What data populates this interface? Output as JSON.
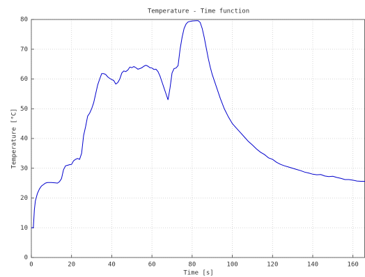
{
  "chart_data": {
    "type": "line",
    "title": "Temperature - Time function",
    "xlabel": "Time [s]",
    "ylabel": "Temperature [°C]",
    "x": [
      0,
      1,
      1.5,
      2,
      3,
      4,
      5,
      6,
      7,
      8,
      10,
      12,
      13,
      14,
      15,
      16,
      17,
      18,
      19,
      20,
      21,
      22,
      23,
      24,
      25,
      26,
      27,
      28,
      29,
      30,
      31,
      32,
      33,
      34,
      35,
      36,
      37,
      38,
      39,
      40,
      41,
      42,
      43,
      44,
      45,
      46,
      47,
      48,
      49,
      50,
      51,
      52,
      53,
      54,
      55,
      56,
      57,
      58,
      59,
      60,
      61,
      62,
      63,
      64,
      65,
      66,
      67,
      68,
      69,
      70,
      71,
      72,
      73,
      74,
      75,
      76,
      77,
      78,
      80,
      82,
      83,
      84,
      85,
      86,
      87,
      88,
      89,
      90,
      92,
      94,
      96,
      98,
      100,
      102,
      104,
      106,
      108,
      110,
      112,
      114,
      116,
      118,
      120,
      122,
      124,
      126,
      128,
      130,
      132,
      134,
      136,
      138,
      140,
      142,
      144,
      146,
      148,
      150,
      152,
      154,
      156,
      158,
      160,
      162,
      164,
      166
    ],
    "series": [
      {
        "name": "Temperature",
        "color": "#0000cc",
        "values": [
          10,
          10,
          16,
          19,
          21.5,
          23,
          24,
          24.5,
          25,
          25.2,
          25.2,
          25.1,
          25,
          25.5,
          26.5,
          29.5,
          30.8,
          31,
          31.2,
          31.3,
          32.5,
          33,
          33.3,
          33,
          35,
          41,
          44,
          47.5,
          48.5,
          50,
          52,
          55,
          58,
          60,
          61.8,
          61.8,
          61.5,
          60.7,
          60.2,
          59.8,
          59.5,
          58.3,
          58.8,
          60,
          62,
          62.7,
          62.5,
          63,
          64,
          63.8,
          64.2,
          63.8,
          63.3,
          63.5,
          63.8,
          64.3,
          64.6,
          64.3,
          63.8,
          63.7,
          63.2,
          63.3,
          62.5,
          61,
          59,
          57,
          55,
          53,
          57,
          62,
          63.5,
          63.7,
          64.5,
          70,
          74,
          77,
          78.5,
          79.2,
          79.5,
          79.6,
          79.6,
          79,
          77,
          74,
          70.5,
          67,
          64,
          61.5,
          57.5,
          53.5,
          50,
          47.3,
          45,
          43.5,
          42,
          40.5,
          39,
          37.8,
          36.5,
          35.4,
          34.6,
          33.5,
          33,
          32,
          31.3,
          30.8,
          30.4,
          30,
          29.6,
          29.2,
          28.7,
          28.4,
          28,
          27.8,
          27.9,
          27.4,
          27.2,
          27.3,
          26.9,
          26.6,
          26.2,
          26.2,
          26,
          25.7,
          25.6,
          25.6
        ]
      }
    ],
    "xlim": [
      0,
      166
    ],
    "ylim": [
      0,
      80
    ],
    "xticks": [
      0,
      20,
      40,
      60,
      80,
      100,
      120,
      140,
      160
    ],
    "yticks": [
      0,
      10,
      20,
      30,
      40,
      50,
      60,
      70,
      80
    ],
    "grid": true
  }
}
